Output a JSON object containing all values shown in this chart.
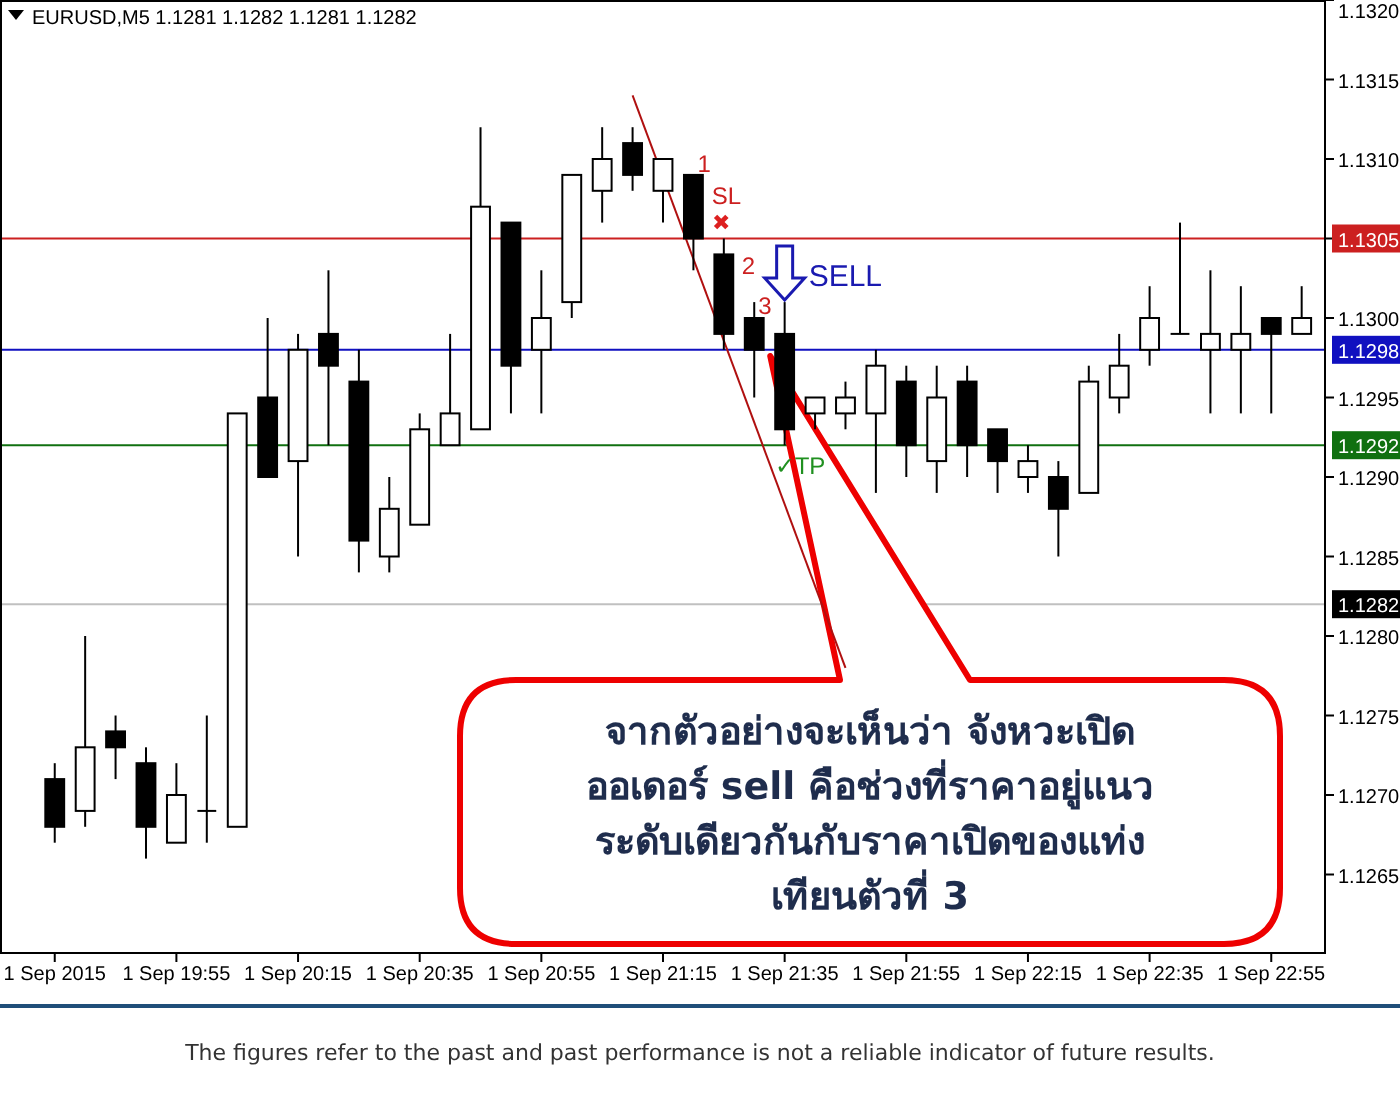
{
  "chart_data": {
    "type": "candlestick",
    "title": "EURUSD,M5 1.1281 1.1282 1.1281 1.1282",
    "x": [
      "2015-09-01T19:35",
      "2015-09-01T19:40",
      "2015-09-01T19:45",
      "2015-09-01T19:50",
      "2015-09-01T19:55",
      "2015-09-01T20:00",
      "2015-09-01T20:05",
      "2015-09-01T20:10",
      "2015-09-01T20:15",
      "2015-09-01T20:20",
      "2015-09-01T20:25",
      "2015-09-01T20:30",
      "2015-09-01T20:35",
      "2015-09-01T20:40",
      "2015-09-01T20:45",
      "2015-09-01T20:50",
      "2015-09-01T20:55",
      "2015-09-01T21:00",
      "2015-09-01T21:05",
      "2015-09-01T21:10",
      "2015-09-01T21:15",
      "2015-09-01T21:20",
      "2015-09-01T21:25",
      "2015-09-01T21:30",
      "2015-09-01T21:35",
      "2015-09-01T21:40",
      "2015-09-01T21:45",
      "2015-09-01T21:50",
      "2015-09-01T21:55",
      "2015-09-01T22:00",
      "2015-09-01T22:05",
      "2015-09-01T22:10",
      "2015-09-01T22:15",
      "2015-09-01T22:20",
      "2015-09-01T22:25",
      "2015-09-01T22:30",
      "2015-09-01T22:35",
      "2015-09-01T22:40",
      "2015-09-01T22:45",
      "2015-09-01T22:50",
      "2015-09-01T22:55",
      "2015-09-01T23:00"
    ],
    "ohlc": [
      [
        1.1271,
        1.1272,
        1.1267,
        1.1268
      ],
      [
        1.1269,
        1.128,
        1.1268,
        1.1273
      ],
      [
        1.1274,
        1.1275,
        1.1271,
        1.1273
      ],
      [
        1.1272,
        1.1273,
        1.1266,
        1.1268
      ],
      [
        1.1267,
        1.1272,
        1.1267,
        1.127
      ],
      [
        1.1269,
        1.1275,
        1.1267,
        1.1269
      ],
      [
        1.1268,
        1.1294,
        1.1268,
        1.1294
      ],
      [
        1.1295,
        1.13,
        1.129,
        1.129
      ],
      [
        1.1291,
        1.1299,
        1.1285,
        1.1298
      ],
      [
        1.1299,
        1.1303,
        1.1292,
        1.1297
      ],
      [
        1.1296,
        1.1298,
        1.1284,
        1.1286
      ],
      [
        1.1285,
        1.129,
        1.1284,
        1.1288
      ],
      [
        1.1287,
        1.1294,
        1.1287,
        1.1293
      ],
      [
        1.1292,
        1.1299,
        1.1292,
        1.1294
      ],
      [
        1.1293,
        1.1312,
        1.1293,
        1.1307
      ],
      [
        1.1306,
        1.1306,
        1.1294,
        1.1297
      ],
      [
        1.1298,
        1.1303,
        1.1294,
        1.13
      ],
      [
        1.1301,
        1.1309,
        1.13,
        1.1309
      ],
      [
        1.1308,
        1.1312,
        1.1306,
        1.131
      ],
      [
        1.1311,
        1.1312,
        1.1308,
        1.1309
      ],
      [
        1.1308,
        1.131,
        1.1306,
        1.131
      ],
      [
        1.1309,
        1.1309,
        1.1303,
        1.1305
      ],
      [
        1.1304,
        1.1305,
        1.1298,
        1.1299
      ],
      [
        1.13,
        1.1301,
        1.1295,
        1.1298
      ],
      [
        1.1299,
        1.1301,
        1.1292,
        1.1293
      ],
      [
        1.1294,
        1.1295,
        1.1293,
        1.1295
      ],
      [
        1.1294,
        1.1296,
        1.1293,
        1.1295
      ],
      [
        1.1294,
        1.1298,
        1.1289,
        1.1297
      ],
      [
        1.1296,
        1.1297,
        1.129,
        1.1292
      ],
      [
        1.1291,
        1.1297,
        1.1289,
        1.1295
      ],
      [
        1.1296,
        1.1297,
        1.129,
        1.1292
      ],
      [
        1.1293,
        1.1293,
        1.1289,
        1.1291
      ],
      [
        1.129,
        1.1292,
        1.1289,
        1.1291
      ],
      [
        1.129,
        1.1291,
        1.1285,
        1.1288
      ],
      [
        1.1289,
        1.1297,
        1.1289,
        1.1296
      ],
      [
        1.1295,
        1.1299,
        1.1294,
        1.1297
      ],
      [
        1.1298,
        1.1302,
        1.1297,
        1.13
      ],
      [
        1.1299,
        1.1306,
        1.1299,
        1.1299
      ],
      [
        1.1298,
        1.1303,
        1.1294,
        1.1299
      ],
      [
        1.1298,
        1.1302,
        1.1294,
        1.1299
      ],
      [
        1.13,
        1.13,
        1.1294,
        1.1299
      ],
      [
        1.1299,
        1.1302,
        1.1299,
        1.13
      ]
    ],
    "series": [
      {
        "type": "line",
        "x": [
          "2015-09-01T21:10",
          "2015-09-01T21:45"
        ],
        "values": [
          1.1314,
          1.1278
        ],
        "color": "#b01010"
      }
    ],
    "xlim": [
      "2015-09-01T19:26",
      "2015-09-01T23:04"
    ],
    "xticks": [
      {
        "value": "2015-09-01T19:35",
        "label": "1 Sep 2015"
      },
      {
        "value": "2015-09-01T19:55",
        "label": "1 Sep 19:55"
      },
      {
        "value": "2015-09-01T20:15",
        "label": "1 Sep 20:15"
      },
      {
        "value": "2015-09-01T20:35",
        "label": "1 Sep 20:35"
      },
      {
        "value": "2015-09-01T20:55",
        "label": "1 Sep 20:55"
      },
      {
        "value": "2015-09-01T21:15",
        "label": "1 Sep 21:15"
      },
      {
        "value": "2015-09-01T21:35",
        "label": "1 Sep 21:35"
      },
      {
        "value": "2015-09-01T21:55",
        "label": "1 Sep 21:55"
      },
      {
        "value": "2015-09-01T22:15",
        "label": "1 Sep 22:15"
      },
      {
        "value": "2015-09-01T22:35",
        "label": "1 Sep 22:35"
      },
      {
        "value": "2015-09-01T22:55",
        "label": "1 Sep 22:55"
      }
    ],
    "ylim": [
      1.126,
      1.132
    ],
    "yticks": [
      {
        "value": 1.1265,
        "label": "1.1265"
      },
      {
        "value": 1.127,
        "label": "1.1270"
      },
      {
        "value": 1.1275,
        "label": "1.1275"
      },
      {
        "value": 1.128,
        "label": "1.1280"
      },
      {
        "value": 1.1285,
        "label": "1.1285"
      },
      {
        "value": 1.129,
        "label": "1.1290"
      },
      {
        "value": 1.1295,
        "label": "1.1295"
      },
      {
        "value": 1.13,
        "label": "1.1300"
      },
      {
        "value": 1.1305,
        "label": null
      },
      {
        "value": 1.131,
        "label": "1.1310"
      },
      {
        "value": 1.1315,
        "label": "1.1315"
      },
      {
        "value": 1.132,
        "label": "1.1320"
      }
    ],
    "ref_lines": [
      {
        "axis": "y",
        "value": 1.1305,
        "label": "1.1305",
        "color": "#cc2020"
      },
      {
        "axis": "y",
        "value": 1.1298,
        "label": "1.1298",
        "color": "#1010c0"
      },
      {
        "axis": "y",
        "value": 1.1292,
        "label": "1.1292",
        "color": "#107010"
      },
      {
        "axis": "y",
        "value": 1.1282,
        "label": "1.1282",
        "color": "#c0c0c0"
      }
    ],
    "annotations": [
      "1",
      "SL",
      "✖",
      "2",
      "3",
      "SELL",
      "✓TP",
      "จากตัวอย่างจะเห็นว่า จังหวะเปิด\nออเดอร์ sell คือช่วงที่ราคาอยู่แนว\nระดับเดียวกันกับราคาเปิดของแท่ง\nเทียนตัวที่ 3",
      "The figures refer to the past and past performance is not a reliable indicator of future results."
    ]
  }
}
